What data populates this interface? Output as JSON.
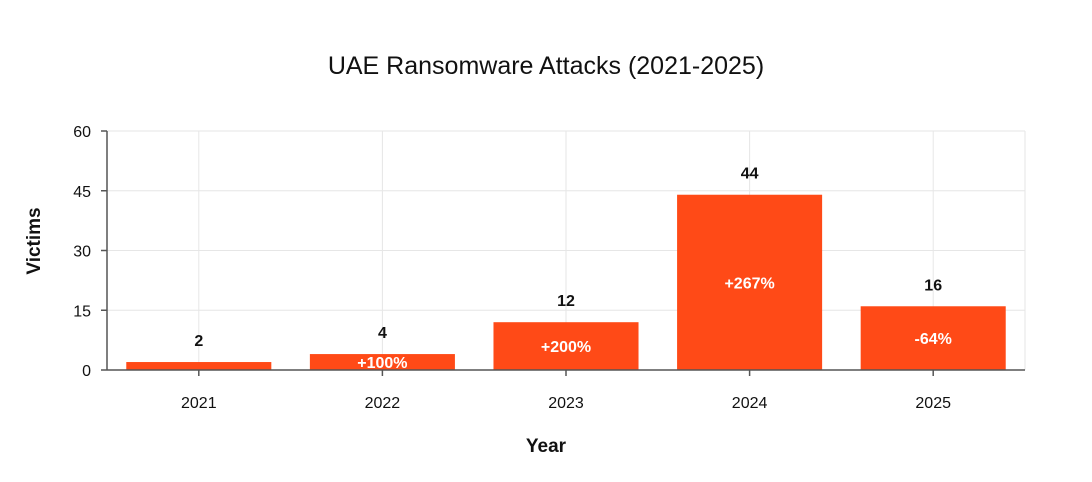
{
  "chart_data": {
    "type": "bar",
    "title": "UAE Ransomware Attacks (2021-2025)",
    "xlabel": "Year",
    "ylabel": "Victims",
    "categories": [
      "2021",
      "2022",
      "2023",
      "2024",
      "2025"
    ],
    "values": [
      2,
      4,
      12,
      44,
      16
    ],
    "value_labels": [
      "2",
      "4",
      "12",
      "44",
      "16"
    ],
    "change_labels": [
      "",
      "+100%",
      "+200%",
      "+267%",
      "-64%"
    ],
    "ylim": [
      0,
      60
    ],
    "yticks": [
      0,
      15,
      30,
      45,
      60
    ],
    "grid": true,
    "legend": "none",
    "colors": {
      "bar": "#ff4a17",
      "grid": "#e6e6e6",
      "axis": "#555555",
      "text": "#111111",
      "inner_text": "#ffffff"
    }
  }
}
